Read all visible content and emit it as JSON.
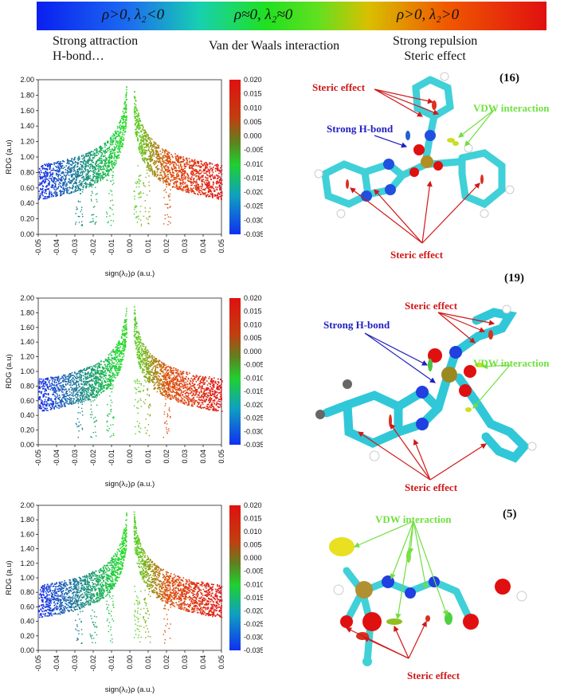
{
  "legend_bar": {
    "left": "ρ>0, λ₂<0",
    "mid": "ρ≈0, λ₂≈0",
    "right": "ρ>0, λ₂>0",
    "colors": [
      "#0a1ff0",
      "#20e020",
      "#e01010"
    ]
  },
  "captions": {
    "left_line1": "Strong attraction",
    "left_line2": "H-bond…",
    "mid": "Van der Waals interaction",
    "right_line1": "Strong repulsion",
    "right_line2": "Steric effect"
  },
  "plots": [
    {
      "ylabel": "RDG (a.u)",
      "xlabel": "sign(λ₂)ρ (a.u.)",
      "x_ticks": [
        "-0.05",
        "-0.04",
        "-0.03",
        "-0.02",
        "-0.01",
        "0.00",
        "0.01",
        "0.02",
        "0.03",
        "0.04",
        "0.05"
      ],
      "y_ticks": [
        "0.00",
        "0.20",
        "0.40",
        "0.60",
        "0.80",
        "1.00",
        "1.20",
        "1.40",
        "1.60",
        "1.80",
        "2.00"
      ],
      "cbar_ticks": [
        "0.020",
        "0.015",
        "0.010",
        "0.005",
        "0.000",
        "-0.005",
        "-0.010",
        "-0.015",
        "-0.020",
        "-0.025",
        "-0.030",
        "-0.035"
      ]
    },
    {
      "ylabel": "RDG (a.u)",
      "xlabel": "sign(λ₂)ρ (a.u.)",
      "x_ticks": [
        "-0.05",
        "-0.04",
        "-0.03",
        "-0.02",
        "-0.01",
        "0.00",
        "0.01",
        "0.02",
        "0.03",
        "0.04",
        "0.05"
      ],
      "y_ticks": [
        "0.00",
        "0.20",
        "0.40",
        "0.60",
        "0.80",
        "1.00",
        "1.20",
        "1.40",
        "1.60",
        "1.80",
        "2.00"
      ],
      "cbar_ticks": [
        "0.020",
        "0.015",
        "0.010",
        "0.005",
        "0.000",
        "-0.005",
        "-0.010",
        "-0.015",
        "-0.020",
        "-0.025",
        "-0.030",
        "-0.035"
      ]
    },
    {
      "ylabel": "RDG (a.u)",
      "xlabel": "sign(λ₂)ρ (a.u.)",
      "x_ticks": [
        "-0.05",
        "-0.04",
        "-0.03",
        "-0.02",
        "-0.01",
        "0.00",
        "0.01",
        "0.02",
        "0.03",
        "0.04",
        "0.05"
      ],
      "y_ticks": [
        "0.00",
        "0.20",
        "0.40",
        "0.60",
        "0.80",
        "1.00",
        "1.20",
        "1.40",
        "1.60",
        "1.80",
        "2.00"
      ],
      "cbar_ticks": [
        "0.020",
        "0.015",
        "0.010",
        "0.005",
        "0.000",
        "-0.005",
        "-0.010",
        "-0.015",
        "-0.020",
        "-0.025",
        "-0.030",
        "-0.035"
      ]
    }
  ],
  "molecules": [
    {
      "id": "(16)",
      "labels": {
        "steric_top": "Steric effect",
        "hbond": "Strong H-bond",
        "vdw": "VDW interaction",
        "steric_bottom": "Steric effect"
      }
    },
    {
      "id": "(19)",
      "labels": {
        "steric_top": "Steric effect",
        "hbond": "Strong H-bond",
        "vdw": "VDW interaction",
        "steric_bottom": "Steric effect"
      }
    },
    {
      "id": "(5)",
      "labels": {
        "vdw": "VDW interaction",
        "steric_bottom": "Steric effect"
      }
    }
  ]
}
